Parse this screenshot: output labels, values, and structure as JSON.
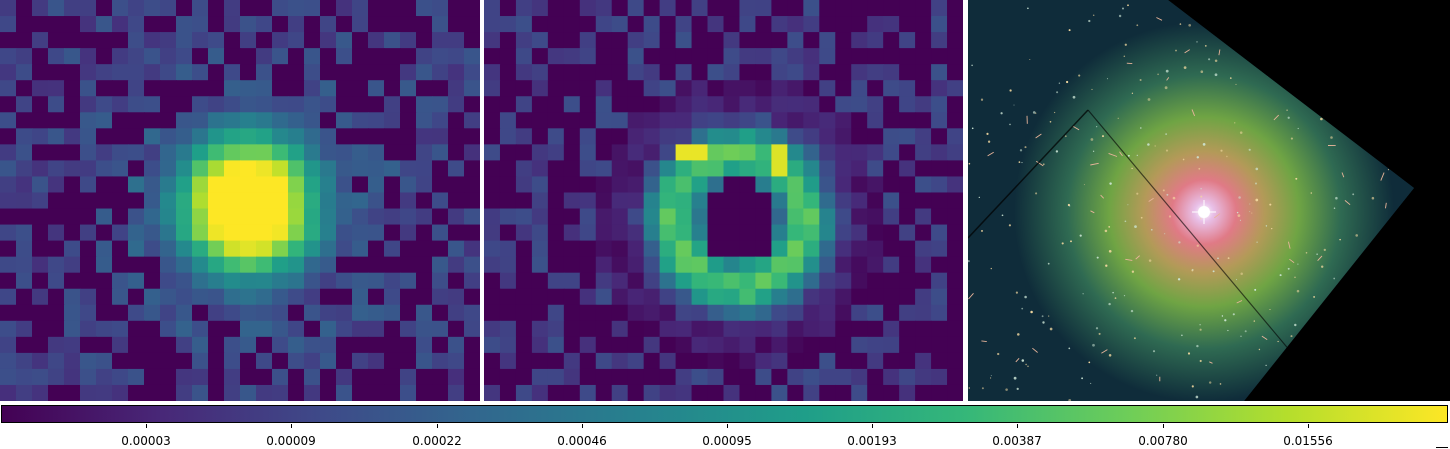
{
  "panels": [
    {
      "name": "model-image",
      "description_icon": "viridis-heatmap"
    },
    {
      "name": "residual-image",
      "description_icon": "viridis-ring-heatmap"
    },
    {
      "name": "galaxy-color-image",
      "description_icon": "astronomy-photo"
    }
  ],
  "colorbar": {
    "colormap": "viridis",
    "scale": "log",
    "tick_labels": [
      "0.00003",
      "0.00009",
      "0.00022",
      "0.00046",
      "0.00095",
      "0.00193",
      "0.00387",
      "0.00780",
      "0.01556"
    ]
  },
  "colors": {
    "viridis_low": "#440154",
    "viridis_mid": "#21918c",
    "viridis_high": "#fde725"
  }
}
